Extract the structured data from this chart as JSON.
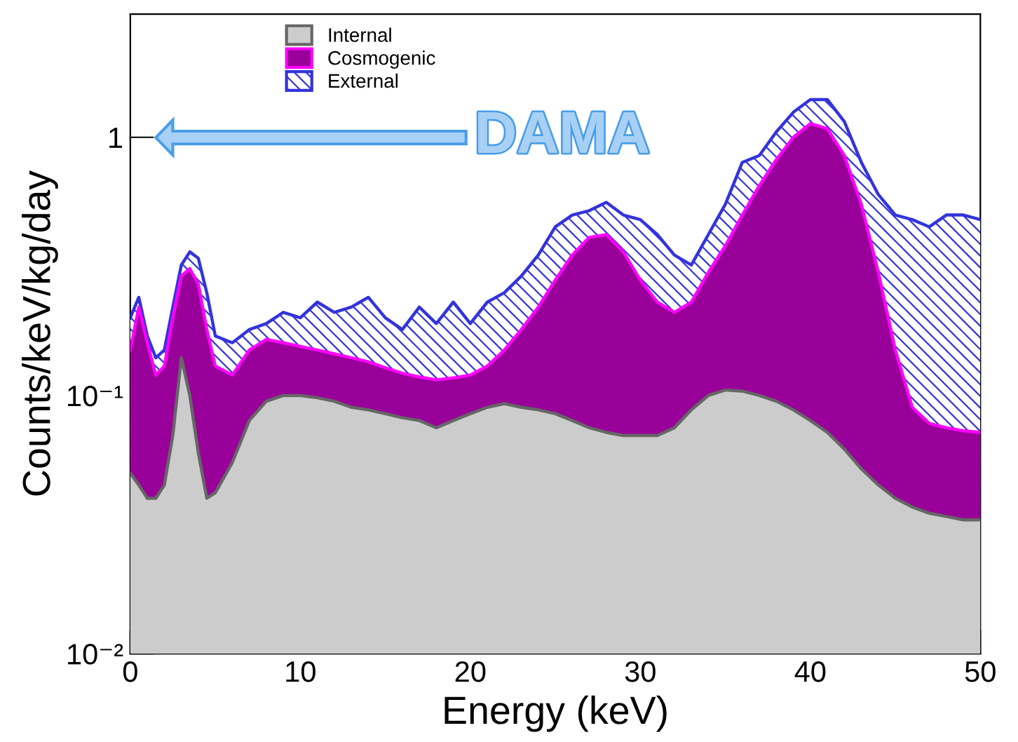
{
  "chart_data": {
    "type": "area",
    "xlabel": "Energy (keV)",
    "ylabel": "Counts/keV/kg/day",
    "x": [
      0,
      0.5,
      1,
      1.5,
      2,
      2.5,
      3,
      3.5,
      4,
      4.5,
      5,
      6,
      7,
      8,
      9,
      10,
      11,
      12,
      13,
      14,
      15,
      16,
      17,
      18,
      19,
      20,
      21,
      22,
      23,
      24,
      25,
      26,
      27,
      28,
      29,
      30,
      31,
      32,
      33,
      34,
      35,
      36,
      37,
      38,
      39,
      40,
      41,
      42,
      43,
      44,
      45,
      46,
      47,
      48,
      49,
      50
    ],
    "series": [
      {
        "name": "Internal",
        "color": "#cccccc",
        "values": [
          0.05,
          0.045,
          0.04,
          0.04,
          0.045,
          0.07,
          0.14,
          0.1,
          0.06,
          0.04,
          0.042,
          0.055,
          0.08,
          0.095,
          0.1,
          0.1,
          0.098,
          0.095,
          0.09,
          0.088,
          0.085,
          0.082,
          0.08,
          0.075,
          0.08,
          0.085,
          0.09,
          0.093,
          0.09,
          0.088,
          0.085,
          0.08,
          0.075,
          0.072,
          0.07,
          0.07,
          0.07,
          0.075,
          0.088,
          0.1,
          0.105,
          0.104,
          0.1,
          0.095,
          0.088,
          0.08,
          0.072,
          0.062,
          0.052,
          0.045,
          0.04,
          0.037,
          0.035,
          0.034,
          0.033,
          0.033
        ]
      },
      {
        "name": "Cosmogenic",
        "color": "#990099",
        "values": [
          0.15,
          0.22,
          0.16,
          0.12,
          0.13,
          0.2,
          0.29,
          0.31,
          0.27,
          0.18,
          0.13,
          0.12,
          0.15,
          0.165,
          0.16,
          0.155,
          0.15,
          0.145,
          0.14,
          0.135,
          0.128,
          0.122,
          0.118,
          0.115,
          0.117,
          0.12,
          0.13,
          0.15,
          0.18,
          0.22,
          0.28,
          0.35,
          0.41,
          0.42,
          0.36,
          0.28,
          0.23,
          0.21,
          0.23,
          0.3,
          0.38,
          0.5,
          0.65,
          0.82,
          1.0,
          1.13,
          1.08,
          0.85,
          0.55,
          0.3,
          0.15,
          0.09,
          0.078,
          0.075,
          0.073,
          0.072
        ]
      },
      {
        "name": "External",
        "color": "#3333dd",
        "values": [
          0.2,
          0.24,
          0.17,
          0.14,
          0.15,
          0.22,
          0.32,
          0.36,
          0.34,
          0.25,
          0.17,
          0.16,
          0.18,
          0.19,
          0.21,
          0.2,
          0.23,
          0.21,
          0.22,
          0.24,
          0.2,
          0.18,
          0.22,
          0.19,
          0.23,
          0.19,
          0.23,
          0.25,
          0.29,
          0.35,
          0.45,
          0.5,
          0.52,
          0.56,
          0.5,
          0.48,
          0.42,
          0.35,
          0.32,
          0.42,
          0.55,
          0.8,
          0.85,
          1.05,
          1.25,
          1.4,
          1.4,
          1.15,
          0.8,
          0.6,
          0.5,
          0.48,
          0.45,
          0.5,
          0.5,
          0.48
        ]
      }
    ],
    "annotations": [
      "DAMA"
    ],
    "log": "y",
    "xlim": [
      0,
      50
    ],
    "xticks": [
      0,
      10,
      20,
      30,
      40,
      50
    ],
    "ylim": [
      0.01,
      3
    ],
    "yticks": [
      {
        "value": 0.01,
        "label": "10⁻²"
      },
      {
        "value": 0.1,
        "label": "10⁻¹"
      },
      1
    ],
    "legend": "top left",
    "grid": false
  }
}
